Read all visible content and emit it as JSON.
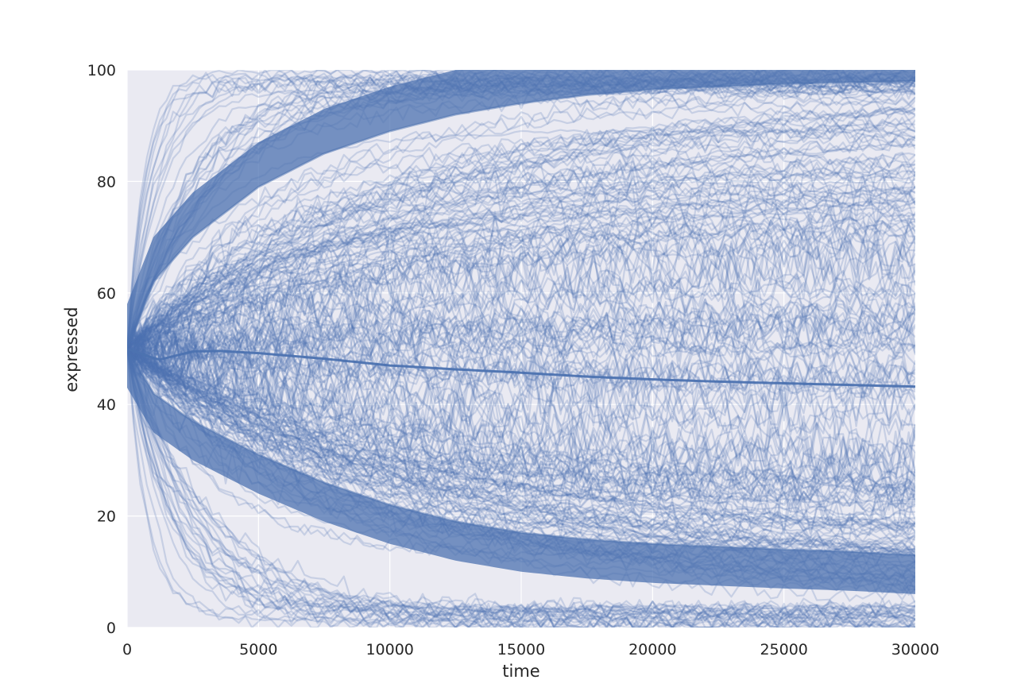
{
  "chart_data": {
    "type": "line",
    "title": "",
    "xlabel": "time",
    "ylabel": "expressed",
    "xlim": [
      0,
      30000
    ],
    "ylim": [
      0,
      100
    ],
    "x_ticks": [
      "0",
      "5000",
      "10000",
      "15000",
      "20000",
      "25000",
      "30000"
    ],
    "y_ticks": [
      "0",
      "20",
      "40",
      "60",
      "80",
      "100"
    ],
    "x_tick_values": [
      0,
      5000,
      10000,
      15000,
      20000,
      25000,
      30000
    ],
    "y_tick_values": [
      0,
      20,
      40,
      60,
      80,
      100
    ],
    "grid": true,
    "legend": "none",
    "series_color": "#4c72b0",
    "background_color": "#eaeaf2",
    "start_value_approx": 50,
    "upper_envelope": {
      "x": [
        0,
        1000,
        2500,
        5000,
        7500,
        10000,
        12500,
        15000,
        17500,
        20000,
        22500,
        25000,
        27500,
        30000
      ],
      "y": [
        50,
        62,
        70,
        79,
        85,
        89,
        92,
        94,
        95.5,
        96.5,
        97,
        97.5,
        97.8,
        98
      ]
    },
    "lower_envelope": {
      "x": [
        0,
        1000,
        2500,
        5000,
        7500,
        10000,
        12500,
        15000,
        17500,
        20000,
        22500,
        25000,
        27500,
        30000
      ],
      "y": [
        50,
        42,
        37,
        31,
        26,
        22,
        19,
        17,
        15.8,
        15,
        14.5,
        14,
        13.6,
        13
      ]
    },
    "mean_line": {
      "x": [
        0,
        1200,
        2500,
        3500,
        5000,
        7500,
        10000,
        12500,
        15000,
        17500,
        20000,
        22500,
        25000,
        27500,
        30000
      ],
      "y": [
        50,
        48,
        49.5,
        49.6,
        49.2,
        48.2,
        47,
        46.3,
        45.7,
        45,
        44.5,
        44.1,
        43.8,
        43.5,
        43.2
      ]
    }
  }
}
